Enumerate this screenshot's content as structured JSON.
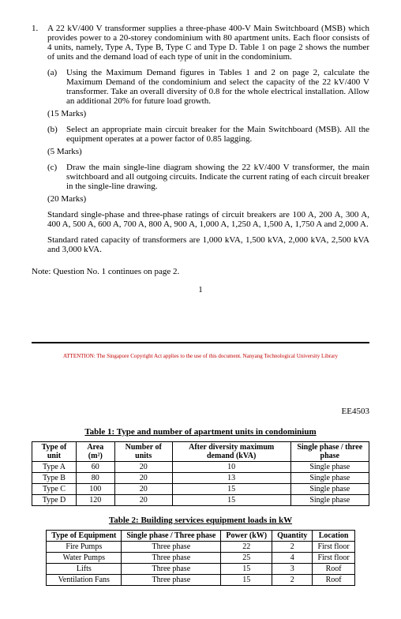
{
  "question": {
    "number": "1.",
    "intro": "A 22 kV/400 V transformer supplies a three-phase 400-V Main Switchboard (MSB) which provides power to a 20-storey condominium with 80 apartment units. Each floor consists of 4 units, namely, Type A, Type B, Type C and Type D. Table 1 on page 2 shows the number of units and the demand load of each type of unit in the condominium.",
    "parts": {
      "a": {
        "lbl": "(a)",
        "text": "Using the Maximum Demand figures in Tables 1 and 2 on page 2, calculate the Maximum Demand of the condominium and select the capacity of the 22 kV/400 V transformer. Take an overall diversity of 0.8 for the whole electrical installation. Allow an additional 20% for future load growth.",
        "marks": "(15 Marks)"
      },
      "b": {
        "lbl": "(b)",
        "text": "Select an appropriate main circuit breaker for the Main Switchboard (MSB). All the equipment operates at a power factor of 0.85 lagging.",
        "marks": "(5 Marks)"
      },
      "c": {
        "lbl": "(c)",
        "text": "Draw the main single-line diagram showing the 22 kV/400 V transformer, the main switchboard and all outgoing circuits. Indicate the current rating of each circuit breaker in the single-line drawing.",
        "marks": "(20 Marks)"
      }
    },
    "std1": "Standard single-phase and three-phase ratings of circuit breakers are 100 A, 200 A, 300 A, 400 A, 500 A, 600 A, 700 A, 800 A, 900 A, 1,000 A, 1,250 A, 1,500 A, 1,750 A and 2,000 A.",
    "std2": "Standard rated capacity of transformers are 1,000 kVA, 1,500 kVA, 2,000 kVA, 2,500 kVA and 3,000 kVA."
  },
  "note": "Note: Question No. 1 continues on page 2.",
  "page_num": "1",
  "attention": "ATTENTION: The Singapore Copyright Act applies to the use of this document. Nanyang Technological University Library",
  "course": "EE4503",
  "table1": {
    "title": "Table 1: Type and number of apartment units in condominium",
    "headers": {
      "c1": "Type of unit",
      "c2": "Area (m²)",
      "c3": "Number of units",
      "c4": "After diversity maximum demand (kVA)",
      "c5": "Single phase / three phase"
    },
    "rows": [
      {
        "c1": "Type A",
        "c2": "60",
        "c3": "20",
        "c4": "10",
        "c5": "Single phase"
      },
      {
        "c1": "Type B",
        "c2": "80",
        "c3": "20",
        "c4": "13",
        "c5": "Single phase"
      },
      {
        "c1": "Type C",
        "c2": "100",
        "c3": "20",
        "c4": "15",
        "c5": "Single phase"
      },
      {
        "c1": "Type D",
        "c2": "120",
        "c3": "20",
        "c4": "15",
        "c5": "Single phase"
      }
    ]
  },
  "table2": {
    "title": "Table 2: Building services equipment loads in kW",
    "headers": {
      "c1": "Type of Equipment",
      "c2": "Single phase / Three phase",
      "c3": "Power (kW)",
      "c4": "Quantity",
      "c5": "Location"
    },
    "rows": [
      {
        "c1": "Fire Pumps",
        "c2": "Three phase",
        "c3": "22",
        "c4": "2",
        "c5": "First floor"
      },
      {
        "c1": "Water Pumps",
        "c2": "Three phase",
        "c3": "25",
        "c4": "4",
        "c5": "First floor"
      },
      {
        "c1": "Lifts",
        "c2": "Three phase",
        "c3": "15",
        "c4": "3",
        "c5": "Roof"
      },
      {
        "c1": "Ventilation Fans",
        "c2": "Three phase",
        "c3": "15",
        "c4": "2",
        "c5": "Roof"
      }
    ]
  }
}
